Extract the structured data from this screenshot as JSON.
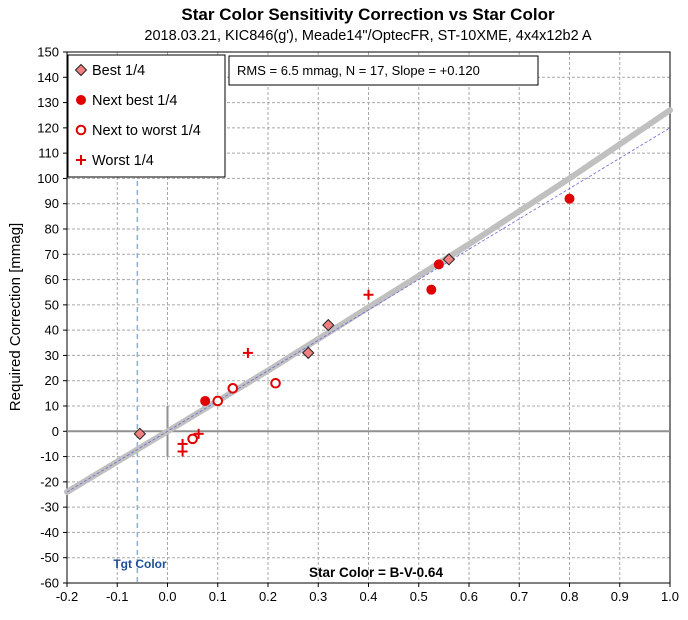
{
  "chart_data": {
    "type": "scatter",
    "title": "Star Color Sensitivity Correction vs Star Color",
    "subtitle": "2018.03.21, KIC846(g'), Meade14\"/OptecFR, ST-10XME, 4x4x12b2 A",
    "xlabel": "Star Color = B-V-0.64",
    "ylabel": "Required Correction [mmag]",
    "xlim": [
      -0.2,
      1.0
    ],
    "ylim": [
      -60,
      150
    ],
    "xticks": [
      "-0.2",
      "-0.1",
      "0.0",
      "0.1",
      "0.2",
      "0.3",
      "0.4",
      "0.5",
      "0.6",
      "0.7",
      "0.8",
      "0.9",
      "1.0"
    ],
    "yticks": [
      "150",
      "140",
      "130",
      "120",
      "110",
      "100",
      "90",
      "80",
      "70",
      "60",
      "50",
      "40",
      "30",
      "20",
      "10",
      "0",
      "-10",
      "-20",
      "-30",
      "-40",
      "-50",
      "-60"
    ],
    "grid": true,
    "legend_position": "top-left",
    "stats_text": "RMS = 6.5 mmag, N = 17, Slope = +0.120",
    "target_label": "Tgt Color",
    "target_x": -0.06,
    "series": [
      {
        "name": "Best 1/4",
        "marker": "diamond",
        "color": "#f08080",
        "x": [
          -0.055,
          0.28,
          0.32,
          0.56
        ],
        "y": [
          -1,
          31,
          42,
          68
        ]
      },
      {
        "name": "Next best 1/4",
        "marker": "filled-circle",
        "color": "#e00000",
        "x": [
          0.075,
          0.525,
          0.54,
          0.8
        ],
        "y": [
          12,
          56,
          66,
          92
        ]
      },
      {
        "name": "Next to worst 1/4",
        "marker": "open-circle",
        "color": "#e00000",
        "x": [
          0.05,
          0.1,
          0.13,
          0.215
        ],
        "y": [
          -3,
          12,
          17,
          19
        ]
      },
      {
        "name": "Worst 1/4",
        "marker": "plus",
        "color": "#e00000",
        "x": [
          0.03,
          0.03,
          0.062,
          0.16,
          0.4
        ],
        "y": [
          -5,
          -8,
          -1,
          31,
          54
        ]
      }
    ],
    "fit_curve": {
      "x": [
        -0.2,
        0.0,
        0.2,
        0.4,
        0.6,
        0.8,
        1.0
      ],
      "y": [
        -24,
        0,
        24,
        49,
        74,
        100,
        127
      ],
      "color": "#c0c0c0"
    },
    "linear_fit": {
      "x": [
        -0.2,
        1.0
      ],
      "y": [
        -24,
        120
      ],
      "color": "#6a6ad8"
    }
  }
}
